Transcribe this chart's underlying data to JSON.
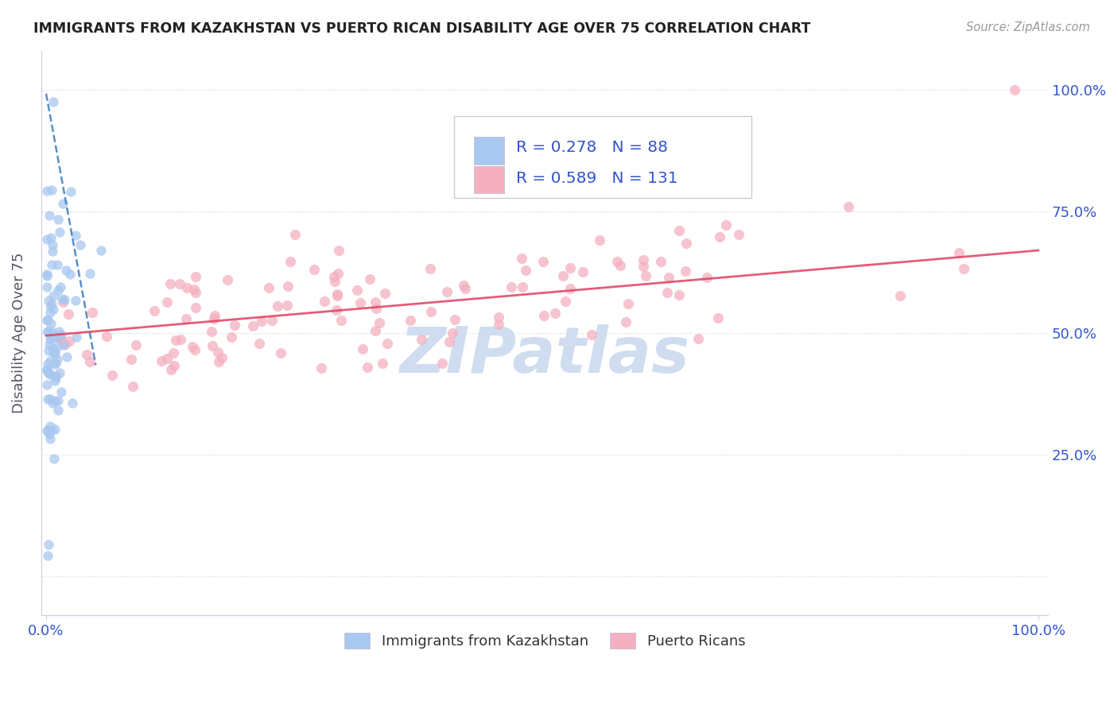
{
  "title": "IMMIGRANTS FROM KAZAKHSTAN VS PUERTO RICAN DISABILITY AGE OVER 75 CORRELATION CHART",
  "source": "Source: ZipAtlas.com",
  "ylabel": "Disability Age Over 75",
  "legend_blue_R": "0.278",
  "legend_blue_N": "88",
  "legend_pink_R": "0.589",
  "legend_pink_N": "131",
  "blue_color": "#a8c8f0",
  "pink_color": "#f4b0c0",
  "blue_line_color": "#3a7cc0",
  "pink_line_color": "#e04060",
  "title_color": "#222222",
  "axis_label_color": "#3355cc",
  "grid_color": "#d8d8e8",
  "watermark_color": "#d0ddf0",
  "background_color": "#ffffff"
}
